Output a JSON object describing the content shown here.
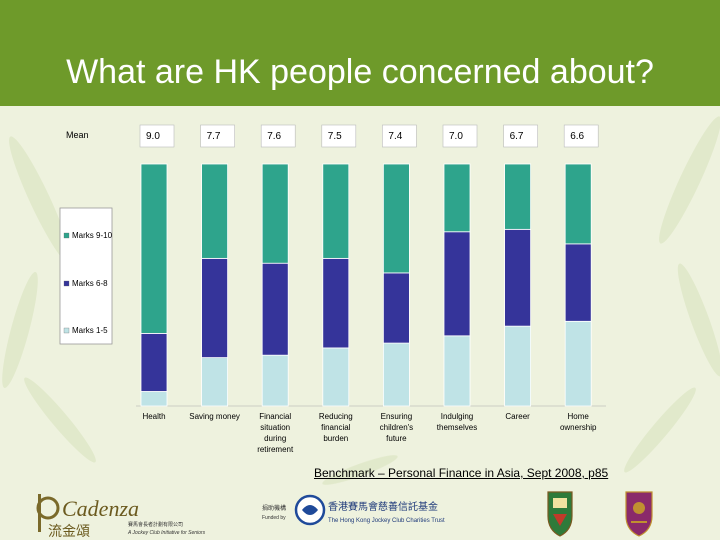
{
  "slide": {
    "title": "What are HK people concerned about?",
    "source": "Benchmark – Personal Finance in Asia, Sept 2008, p85"
  },
  "chart_data": {
    "type": "bar",
    "stacked": true,
    "percent_scale": [
      0,
      100
    ],
    "mean_label": "Mean",
    "means": [
      "9.0",
      "7.7",
      "7.6",
      "7.5",
      "7.4",
      "7.0",
      "6.7",
      "6.6"
    ],
    "categories": [
      [
        "Health"
      ],
      [
        "Saving money"
      ],
      [
        "Financial",
        "situation",
        "during",
        "retirement"
      ],
      [
        "Reducing",
        "financial",
        "burden"
      ],
      [
        "Ensuring",
        "children's",
        "future"
      ],
      [
        "Indulging",
        "themselves"
      ],
      [
        "Career"
      ],
      [
        "Home",
        "ownership"
      ]
    ],
    "series": [
      {
        "name": "Marks 1-5",
        "color": "#bfe3e6",
        "values": [
          6,
          20,
          21,
          24,
          26,
          29,
          33,
          35
        ]
      },
      {
        "name": "Marks 6-8",
        "color": "#35349a",
        "values": [
          24,
          41,
          38,
          37,
          29,
          43,
          40,
          32
        ]
      },
      {
        "name": "Marks 9-10",
        "color": "#2ea48c",
        "values": [
          70,
          39,
          41,
          39,
          45,
          28,
          27,
          33
        ]
      }
    ],
    "legend_order": [
      "Marks 9-10",
      "Marks 6-8",
      "Marks 1-5"
    ],
    "legend_position": "left",
    "grid": false
  },
  "logos": {
    "cadenza_text": "Cadenza",
    "cadenza_chinese": "流金頌",
    "cadenza_sub1": "賽馬會長者計劃有限公司",
    "cadenza_sub2": "A Jockey Club Initiative for Seniors",
    "funded_chinese": "捐助機構",
    "funded_by": "Funded by",
    "trust_chinese": "香港賽馬會慈善信託基金",
    "trust_name": "The Hong Kong Jockey Club Charities Trust"
  }
}
